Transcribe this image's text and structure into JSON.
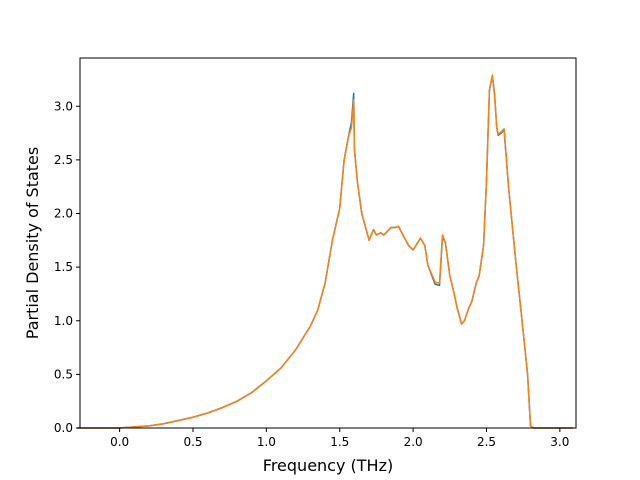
{
  "chart_data": {
    "type": "line",
    "title": "",
    "xlabel": "Frequency (THz)",
    "ylabel": "Partial Density of States",
    "xlim": [
      -0.27,
      3.11
    ],
    "ylim": [
      0.0,
      3.45
    ],
    "xticks": [
      0.0,
      0.5,
      1.0,
      1.5,
      2.0,
      2.5,
      3.0
    ],
    "xtick_labels": [
      "0.0",
      "0.5",
      "1.0",
      "1.5",
      "2.0",
      "2.5",
      "3.0"
    ],
    "yticks": [
      0.0,
      0.5,
      1.0,
      1.5,
      2.0,
      2.5,
      3.0
    ],
    "ytick_labels": [
      "0.0",
      "0.5",
      "1.0",
      "1.5",
      "2.0",
      "2.5",
      "3.0"
    ],
    "grid": false,
    "legend": false,
    "series": [
      {
        "color": "#1f77b4",
        "x": [
          -0.29,
          -0.1,
          0.0,
          0.1,
          0.2,
          0.3,
          0.4,
          0.5,
          0.6,
          0.7,
          0.8,
          0.9,
          1.0,
          1.1,
          1.2,
          1.25,
          1.3,
          1.35,
          1.4,
          1.45,
          1.5,
          1.53,
          1.56,
          1.58,
          1.595,
          1.6,
          1.62,
          1.65,
          1.7,
          1.73,
          1.75,
          1.78,
          1.8,
          1.85,
          1.88,
          1.9,
          1.95,
          1.97,
          2.0,
          2.05,
          2.08,
          2.1,
          2.15,
          2.18,
          2.2,
          2.22,
          2.25,
          2.28,
          2.3,
          2.33,
          2.35,
          2.38,
          2.4,
          2.43,
          2.45,
          2.48,
          2.5,
          2.52,
          2.54,
          2.555,
          2.57,
          2.58,
          2.6,
          2.62,
          2.65,
          2.7,
          2.75,
          2.78,
          2.8,
          2.82,
          2.9,
          3.0,
          3.09
        ],
        "y": [
          0.0,
          0.0,
          0.0,
          0.01,
          0.02,
          0.04,
          0.07,
          0.1,
          0.14,
          0.19,
          0.25,
          0.33,
          0.44,
          0.56,
          0.73,
          0.84,
          0.95,
          1.1,
          1.35,
          1.75,
          2.05,
          2.5,
          2.72,
          2.85,
          3.12,
          2.6,
          2.3,
          2.0,
          1.75,
          1.85,
          1.8,
          1.82,
          1.8,
          1.87,
          1.87,
          1.88,
          1.75,
          1.7,
          1.66,
          1.77,
          1.7,
          1.52,
          1.34,
          1.33,
          1.78,
          1.73,
          1.42,
          1.25,
          1.12,
          0.97,
          1.0,
          1.12,
          1.18,
          1.35,
          1.42,
          1.7,
          2.3,
          3.15,
          3.28,
          3.12,
          2.8,
          2.73,
          2.75,
          2.78,
          2.25,
          1.55,
          0.9,
          0.5,
          0.02,
          0.0,
          0.0,
          0.0,
          0.0
        ]
      },
      {
        "color": "#ff7f0e",
        "x": [
          -0.29,
          -0.1,
          0.0,
          0.1,
          0.2,
          0.3,
          0.4,
          0.5,
          0.6,
          0.7,
          0.8,
          0.9,
          1.0,
          1.1,
          1.2,
          1.25,
          1.3,
          1.35,
          1.4,
          1.45,
          1.5,
          1.53,
          1.56,
          1.58,
          1.595,
          1.6,
          1.62,
          1.65,
          1.7,
          1.73,
          1.75,
          1.78,
          1.8,
          1.85,
          1.88,
          1.9,
          1.95,
          1.97,
          2.0,
          2.05,
          2.08,
          2.1,
          2.15,
          2.18,
          2.2,
          2.22,
          2.25,
          2.28,
          2.3,
          2.33,
          2.35,
          2.38,
          2.4,
          2.43,
          2.45,
          2.48,
          2.5,
          2.52,
          2.54,
          2.555,
          2.57,
          2.58,
          2.6,
          2.62,
          2.65,
          2.7,
          2.75,
          2.78,
          2.8,
          2.82,
          2.9,
          3.0,
          3.09
        ],
        "y": [
          0.0,
          0.0,
          0.0,
          0.01,
          0.02,
          0.04,
          0.07,
          0.1,
          0.14,
          0.19,
          0.25,
          0.33,
          0.44,
          0.56,
          0.73,
          0.84,
          0.95,
          1.1,
          1.35,
          1.75,
          2.05,
          2.5,
          2.72,
          2.8,
          3.06,
          2.6,
          2.3,
          2.0,
          1.75,
          1.85,
          1.8,
          1.82,
          1.8,
          1.87,
          1.87,
          1.88,
          1.75,
          1.7,
          1.66,
          1.77,
          1.7,
          1.52,
          1.36,
          1.35,
          1.8,
          1.73,
          1.42,
          1.25,
          1.12,
          0.97,
          1.0,
          1.12,
          1.18,
          1.35,
          1.42,
          1.7,
          2.3,
          3.15,
          3.29,
          3.1,
          2.8,
          2.74,
          2.76,
          2.79,
          2.25,
          1.55,
          0.9,
          0.5,
          0.02,
          0.0,
          0.0,
          0.0,
          0.0
        ]
      }
    ]
  }
}
